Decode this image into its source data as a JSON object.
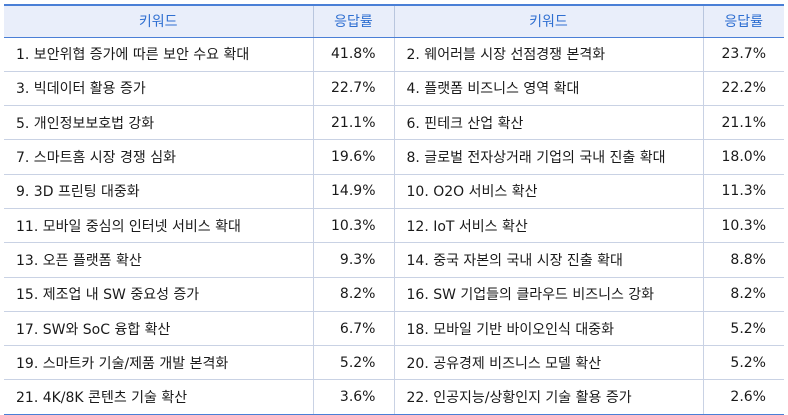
{
  "table": {
    "headers": {
      "keyword_left": "키워드",
      "rate_left": "응답률",
      "keyword_right": "키워드",
      "rate_right": "응답률"
    },
    "rows": [
      {
        "left_keyword": "1. 보안위협 증가에 따른 보안 수요 확대",
        "left_rate": "41.8%",
        "right_keyword": "2. 웨어러블 시장 선점경쟁 본격화",
        "right_rate": "23.7%"
      },
      {
        "left_keyword": "3. 빅데이터 활용 증가",
        "left_rate": "22.7%",
        "right_keyword": "4. 플랫폼 비즈니스 영역 확대",
        "right_rate": "22.2%"
      },
      {
        "left_keyword": "5. 개인정보보호법 강화",
        "left_rate": "21.1%",
        "right_keyword": "6. 핀테크 산업 확산",
        "right_rate": "21.1%"
      },
      {
        "left_keyword": "7. 스마트홈 시장 경쟁 심화",
        "left_rate": "19.6%",
        "right_keyword": "8. 글로벌 전자상거래 기업의 국내 진출 확대",
        "right_rate": "18.0%"
      },
      {
        "left_keyword": "9. 3D 프린팅 대중화",
        "left_rate": "14.9%",
        "right_keyword": "10. O2O 서비스 확산",
        "right_rate": "11.3%"
      },
      {
        "left_keyword": "11. 모바일 중심의 인터넷 서비스 확대",
        "left_rate": "10.3%",
        "right_keyword": "12. IoT 서비스 확산",
        "right_rate": "10.3%"
      },
      {
        "left_keyword": "13. 오픈 플랫폼 확산",
        "left_rate": "9.3%",
        "right_keyword": "14. 중국 자본의 국내 시장 진출 확대",
        "right_rate": "8.8%"
      },
      {
        "left_keyword": "15. 제조업 내 SW 중요성 증가",
        "left_rate": "8.2%",
        "right_keyword": "16. SW 기업들의 클라우드 비즈니스 강화",
        "right_rate": "8.2%"
      },
      {
        "left_keyword": "17. SW와 SoC 융합 확산",
        "left_rate": "6.7%",
        "right_keyword": "18. 모바일 기반 바이오인식 대중화",
        "right_rate": "5.2%"
      },
      {
        "left_keyword": "19. 스마트카 기술/제품 개발 본격화",
        "left_rate": "5.2%",
        "right_keyword": "20. 공유경제 비즈니스 모델 확산",
        "right_rate": "5.2%"
      },
      {
        "left_keyword": "21. 4K/8K 콘텐츠 기술 확산",
        "left_rate": "3.6%",
        "right_keyword": "22. 인공지능/상황인지 기술 활용 증가",
        "right_rate": "2.6%"
      }
    ]
  },
  "colors": {
    "header_text": "#2f6fd1",
    "header_bg": "#e9eefa",
    "rule": "#4a7fd6",
    "grid": "#c9d2e4"
  }
}
